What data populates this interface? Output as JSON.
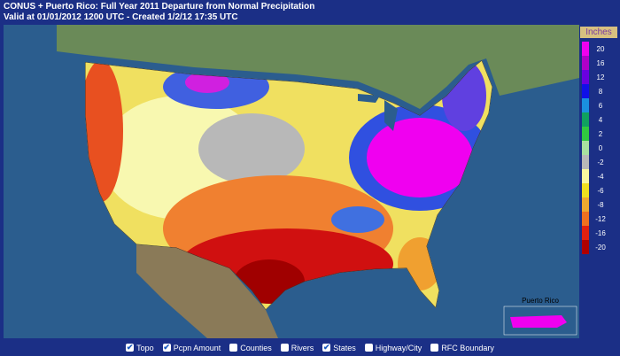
{
  "header": {
    "title": "CONUS + Puerto Rico: Full Year 2011 Departure from Normal Precipitation",
    "subtitle": "Valid at 01/01/2012 1200 UTC - Created 1/2/12 17:35 UTC"
  },
  "legend": {
    "title": "Inches",
    "items": [
      {
        "value": 20,
        "color": "#f000f0"
      },
      {
        "value": 16,
        "color": "#b000c8"
      },
      {
        "value": 12,
        "color": "#6a00e0"
      },
      {
        "value": 8,
        "color": "#1010e8"
      },
      {
        "value": 6,
        "color": "#1a90e0"
      },
      {
        "value": 4,
        "color": "#10a060"
      },
      {
        "value": 2,
        "color": "#30c840"
      },
      {
        "value": 0,
        "color": "#a8e0a0"
      },
      {
        "value": -2,
        "color": "#b8b8b8"
      },
      {
        "value": -4,
        "color": "#f8f8a0"
      },
      {
        "value": -6,
        "color": "#f0e020"
      },
      {
        "value": -8,
        "color": "#f0a830"
      },
      {
        "value": -12,
        "color": "#f07020"
      },
      {
        "value": -16,
        "color": "#e02010"
      },
      {
        "value": -20,
        "color": "#b00000"
      }
    ]
  },
  "inset": {
    "label": "Puerto Rico"
  },
  "toolbar": [
    {
      "label": "Topo",
      "checked": true
    },
    {
      "label": "Pcpn Amount",
      "checked": true
    },
    {
      "label": "Counties",
      "checked": false
    },
    {
      "label": "Rivers",
      "checked": false
    },
    {
      "label": "States",
      "checked": true
    },
    {
      "label": "Highway/City",
      "checked": false
    },
    {
      "label": "RFC Boundary",
      "checked": false
    }
  ]
}
